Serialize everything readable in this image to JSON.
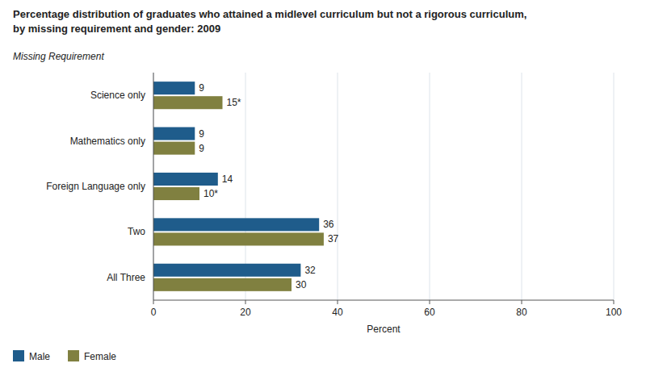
{
  "chart_data": {
    "type": "bar",
    "orientation": "horizontal",
    "title": "Percentage distribution of graduates who attained a midlevel curriculum but not a rigorous curriculum,",
    "subtitle": "by missing requirement and gender: 2009",
    "ylabel": "Missing Requirement",
    "xlabel": "Percent",
    "categories": [
      "Science only",
      "Mathematics only",
      "Foreign Language only",
      "Two",
      "All Three"
    ],
    "series": [
      {
        "name": "Male",
        "color": "#1F5C8B",
        "values": [
          9,
          9,
          14,
          36,
          32
        ]
      },
      {
        "name": "Female",
        "color": "#808040",
        "values": [
          15,
          9,
          10,
          37,
          30
        ],
        "value_labels": [
          "15*",
          "9",
          "10*",
          "37",
          "30"
        ]
      }
    ],
    "xlim": [
      0,
      100
    ],
    "xticks": [
      0,
      20,
      40,
      60,
      80,
      100
    ],
    "grid": true,
    "legend": "bottom",
    "data_labels": true
  }
}
